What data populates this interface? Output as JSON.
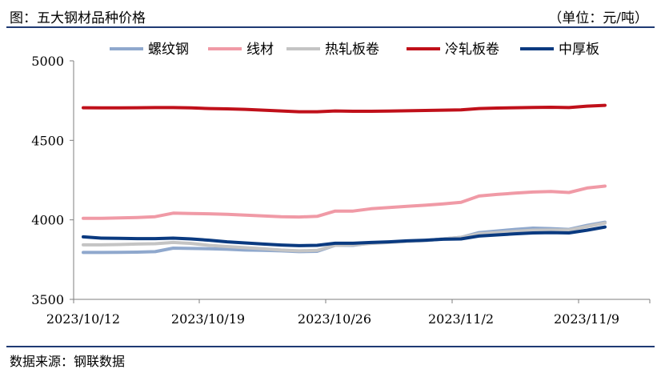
{
  "header": {
    "title": "图：五大钢材品种价格",
    "unit": "（单位：元/吨）"
  },
  "footer": {
    "source": "数据来源：钢联数据"
  },
  "chart_data": {
    "type": "line",
    "title": "图：五大钢材品种价格",
    "ylabel": "（单位：元/吨）",
    "ylim": [
      3500,
      5000
    ],
    "yticks": [
      3500,
      4000,
      4500,
      5000
    ],
    "grid": false,
    "legend_position": "top",
    "xtick_labels": [
      "2023/10/12",
      "2023/10/19",
      "2023/10/26",
      "2023/11/2",
      "2023/11/9"
    ],
    "x": [
      "2023/10/12",
      "2023/10/13",
      "2023/10/14",
      "2023/10/15",
      "2023/10/16",
      "2023/10/17",
      "2023/10/18",
      "2023/10/19",
      "2023/10/20",
      "2023/10/21",
      "2023/10/22",
      "2023/10/23",
      "2023/10/24",
      "2023/10/25",
      "2023/10/26",
      "2023/10/27",
      "2023/10/28",
      "2023/10/29",
      "2023/10/30",
      "2023/10/31",
      "2023/11/1",
      "2023/11/2",
      "2023/11/3",
      "2023/11/4",
      "2023/11/5",
      "2023/11/6",
      "2023/11/7",
      "2023/11/8",
      "2023/11/9",
      "2023/11/10"
    ],
    "series": [
      {
        "name": "螺纹钢",
        "color": "#8fa8cd",
        "values": [
          3795,
          3795,
          3796,
          3797,
          3800,
          3822,
          3820,
          3818,
          3815,
          3810,
          3808,
          3805,
          3800,
          3802,
          3840,
          3840,
          3855,
          3860,
          3865,
          3870,
          3880,
          3890,
          3920,
          3930,
          3940,
          3948,
          3945,
          3940,
          3965,
          3985
        ]
      },
      {
        "name": "线材",
        "color": "#f09aa6",
        "values": [
          4010,
          4010,
          4012,
          4015,
          4020,
          4042,
          4040,
          4038,
          4035,
          4030,
          4025,
          4020,
          4018,
          4022,
          4055,
          4055,
          4070,
          4078,
          4085,
          4092,
          4100,
          4110,
          4150,
          4160,
          4168,
          4175,
          4178,
          4172,
          4200,
          4212
        ]
      },
      {
        "name": "热轧板卷",
        "color": "#c4c4c4",
        "values": [
          3843,
          3843,
          3845,
          3848,
          3850,
          3858,
          3852,
          3840,
          3832,
          3825,
          3818,
          3810,
          3805,
          3808,
          3840,
          3843,
          3852,
          3858,
          3865,
          3870,
          3880,
          3890,
          3912,
          3920,
          3928,
          3935,
          3936,
          3936,
          3958,
          3980
        ]
      },
      {
        "name": "冷轧板卷",
        "color": "#c0101a",
        "values": [
          4705,
          4704,
          4704,
          4705,
          4706,
          4706,
          4704,
          4700,
          4698,
          4695,
          4690,
          4685,
          4680,
          4680,
          4685,
          4683,
          4683,
          4684,
          4686,
          4688,
          4690,
          4692,
          4700,
          4703,
          4705,
          4707,
          4708,
          4706,
          4715,
          4720
        ]
      },
      {
        "name": "中厚板",
        "color": "#0a3a80",
        "values": [
          3893,
          3885,
          3884,
          3882,
          3882,
          3885,
          3880,
          3872,
          3862,
          3855,
          3848,
          3842,
          3838,
          3840,
          3853,
          3853,
          3858,
          3862,
          3868,
          3872,
          3878,
          3880,
          3898,
          3905,
          3912,
          3918,
          3920,
          3918,
          3935,
          3955
        ]
      }
    ]
  }
}
